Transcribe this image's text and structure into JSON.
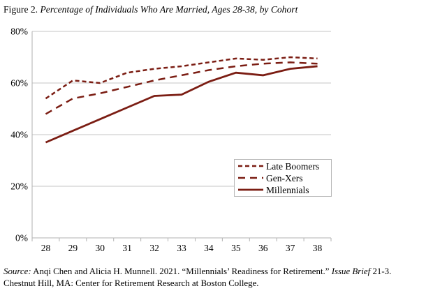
{
  "title": {
    "segments": [
      {
        "text": "Figure 2. ",
        "italic": false
      },
      {
        "text": "Percentage of Individuals Who Are Married, Ages 28-38, by Cohort",
        "italic": true
      }
    ]
  },
  "chart_data": {
    "type": "line",
    "x": [
      28,
      29,
      30,
      31,
      32,
      33,
      34,
      35,
      36,
      37,
      38
    ],
    "xlabel": "",
    "ylabel": "",
    "ylim": [
      0,
      80
    ],
    "ytick_values": [
      0,
      20,
      40,
      60,
      80
    ],
    "ytick_labels": [
      "0%",
      "20%",
      "40%",
      "60%",
      "80%"
    ],
    "grid": "horizontal",
    "legend_position": "inside-bottom-right",
    "line_color": "#7B1D13",
    "grid_color": "#c6c6c6",
    "axis_color": "#b2b2b2",
    "series": [
      {
        "name": "Late Boomers",
        "dash": "short-dash",
        "values": [
          54,
          61,
          60,
          64,
          65.5,
          66.5,
          68,
          69.5,
          69,
          70,
          69.5
        ]
      },
      {
        "name": "Gen-Xers",
        "dash": "long-dash",
        "values": [
          48,
          54,
          56,
          58.5,
          61,
          63,
          65,
          66.5,
          67.5,
          68,
          67.5
        ]
      },
      {
        "name": "Millennials",
        "dash": "solid",
        "values": [
          37,
          41.5,
          46,
          50.5,
          55,
          55.5,
          60.5,
          64,
          63,
          65.5,
          66.5
        ]
      }
    ]
  },
  "source": {
    "lines": [
      {
        "segments": [
          {
            "text": "Source:",
            "italic": true
          },
          {
            "text": " Anqi Chen and Alicia H. Munnell. 2021. “Millennials’ Readiness for Retirement.” ",
            "italic": false
          },
          {
            "text": "Issue Brief",
            "italic": true
          },
          {
            "text": " 21-3.",
            "italic": false
          }
        ]
      },
      {
        "segments": [
          {
            "text": "Chestnut Hill, MA: Center for Retirement Research at Boston College.",
            "italic": false
          }
        ]
      }
    ]
  }
}
